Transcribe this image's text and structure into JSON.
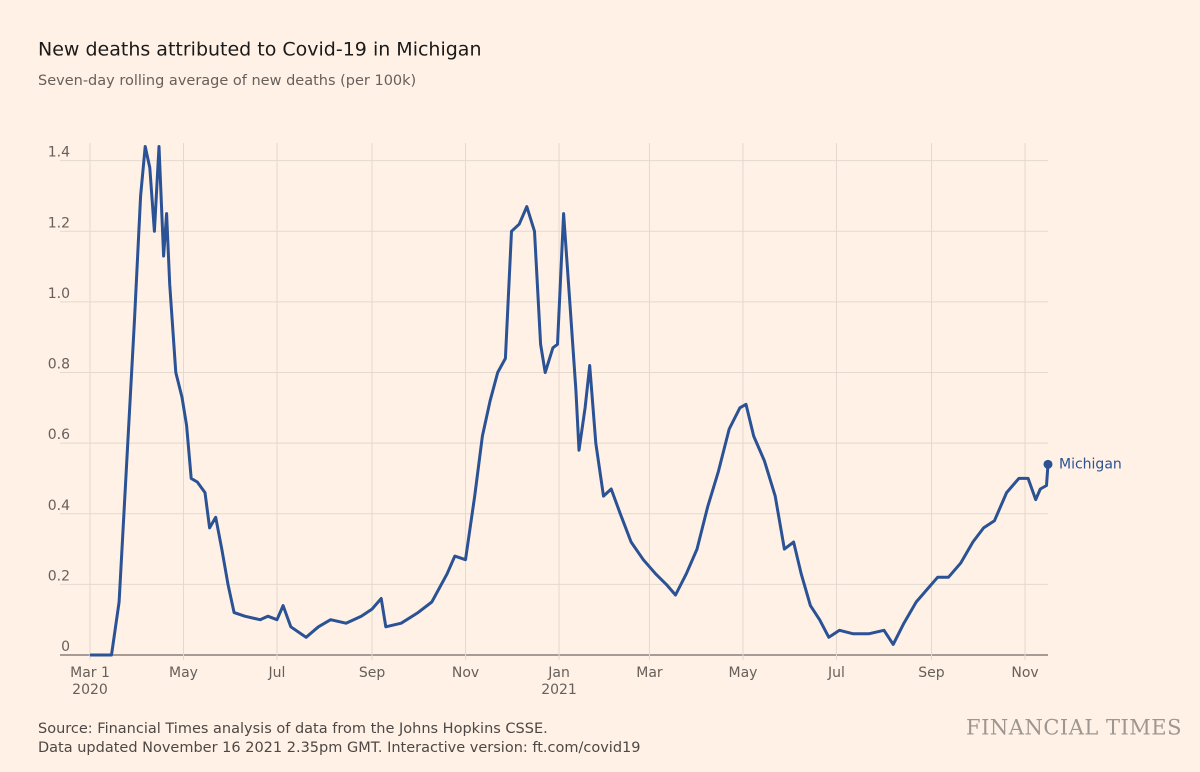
{
  "chart_data": {
    "type": "line",
    "title": "New deaths attributed to Covid-19 in Michigan",
    "subtitle": "Seven-day rolling average of new deaths (per 100k)",
    "source": "Source: Financial Times analysis of data from the Johns Hopkins CSSE.",
    "updated": "Data updated November 16 2021 2.35pm GMT. Interactive version: ft.com/covid19",
    "publisher": "FINANCIAL TIMES",
    "x": [
      "2020-03-01",
      "2020-03-15",
      "2020-03-20",
      "2020-03-25",
      "2020-03-30",
      "2020-04-03",
      "2020-04-06",
      "2020-04-09",
      "2020-04-12",
      "2020-04-15",
      "2020-04-18",
      "2020-04-20",
      "2020-04-22",
      "2020-04-26",
      "2020-04-30",
      "2020-05-03",
      "2020-05-06",
      "2020-05-10",
      "2020-05-15",
      "2020-05-18",
      "2020-05-22",
      "2020-05-26",
      "2020-05-30",
      "2020-06-03",
      "2020-06-10",
      "2020-06-20",
      "2020-06-25",
      "2020-07-01",
      "2020-07-05",
      "2020-07-10",
      "2020-07-20",
      "2020-07-28",
      "2020-08-05",
      "2020-08-15",
      "2020-08-25",
      "2020-09-01",
      "2020-09-07",
      "2020-09-10",
      "2020-09-20",
      "2020-10-01",
      "2020-10-10",
      "2020-10-20",
      "2020-10-25",
      "2020-11-01",
      "2020-11-07",
      "2020-11-12",
      "2020-11-17",
      "2020-11-22",
      "2020-11-27",
      "2020-12-01",
      "2020-12-06",
      "2020-12-11",
      "2020-12-16",
      "2020-12-20",
      "2020-12-23",
      "2020-12-28",
      "2020-12-31",
      "2021-01-04",
      "2021-01-08",
      "2021-01-12",
      "2021-01-14",
      "2021-01-18",
      "2021-01-21",
      "2021-01-25",
      "2021-01-30",
      "2021-02-04",
      "2021-02-10",
      "2021-02-17",
      "2021-02-25",
      "2021-03-05",
      "2021-03-12",
      "2021-03-18",
      "2021-03-25",
      "2021-04-01",
      "2021-04-08",
      "2021-04-15",
      "2021-04-22",
      "2021-04-29",
      "2021-05-03",
      "2021-05-08",
      "2021-05-15",
      "2021-05-22",
      "2021-05-28",
      "2021-06-03",
      "2021-06-08",
      "2021-06-14",
      "2021-06-20",
      "2021-06-26",
      "2021-07-03",
      "2021-07-12",
      "2021-07-22",
      "2021-08-01",
      "2021-08-07",
      "2021-08-14",
      "2021-08-22",
      "2021-08-30",
      "2021-09-05",
      "2021-09-12",
      "2021-09-20",
      "2021-09-28",
      "2021-10-05",
      "2021-10-12",
      "2021-10-20",
      "2021-10-28",
      "2021-11-03",
      "2021-11-08",
      "2021-11-11",
      "2021-11-15",
      "2021-11-16"
    ],
    "series": [
      {
        "name": "Michigan",
        "color": "#2a5294",
        "values": [
          0,
          0,
          0.15,
          0.55,
          0.95,
          1.3,
          1.44,
          1.38,
          1.2,
          1.44,
          1.13,
          1.25,
          1.05,
          0.8,
          0.73,
          0.65,
          0.5,
          0.49,
          0.46,
          0.36,
          0.39,
          0.3,
          0.2,
          0.12,
          0.11,
          0.1,
          0.11,
          0.1,
          0.14,
          0.08,
          0.05,
          0.08,
          0.1,
          0.09,
          0.11,
          0.13,
          0.16,
          0.08,
          0.09,
          0.12,
          0.15,
          0.23,
          0.28,
          0.27,
          0.45,
          0.62,
          0.72,
          0.8,
          0.84,
          1.2,
          1.22,
          1.27,
          1.2,
          0.88,
          0.8,
          0.87,
          0.88,
          1.25,
          1.0,
          0.75,
          0.58,
          0.7,
          0.82,
          0.6,
          0.45,
          0.47,
          0.4,
          0.32,
          0.27,
          0.23,
          0.2,
          0.17,
          0.23,
          0.3,
          0.42,
          0.52,
          0.64,
          0.7,
          0.71,
          0.62,
          0.55,
          0.45,
          0.3,
          0.32,
          0.23,
          0.14,
          0.1,
          0.05,
          0.07,
          0.06,
          0.06,
          0.07,
          0.03,
          0.09,
          0.15,
          0.19,
          0.22,
          0.22,
          0.26,
          0.32,
          0.36,
          0.38,
          0.46,
          0.5,
          0.5,
          0.44,
          0.47,
          0.48,
          0.54
        ]
      }
    ],
    "xlim": [
      "2020-03-01",
      "2021-11-16"
    ],
    "xticks": [
      {
        "value": "2020-03-01",
        "label": "Mar 1"
      },
      {
        "value": "2020-05-01",
        "label": "May"
      },
      {
        "value": "2020-07-01",
        "label": "Jul"
      },
      {
        "value": "2020-09-01",
        "label": "Sep"
      },
      {
        "value": "2020-11-01",
        "label": "Nov"
      },
      {
        "value": "2021-01-01",
        "label": "Jan"
      },
      {
        "value": "2021-03-01",
        "label": "Mar"
      },
      {
        "value": "2021-05-01",
        "label": "May"
      },
      {
        "value": "2021-07-01",
        "label": "Jul"
      },
      {
        "value": "2021-09-01",
        "label": "Sep"
      },
      {
        "value": "2021-11-01",
        "label": "Nov"
      }
    ],
    "year_labels": [
      {
        "value": "2020-03-01",
        "label": "2020"
      },
      {
        "value": "2021-01-01",
        "label": "2021"
      }
    ],
    "ylim": [
      0,
      1.45
    ],
    "yticks": [
      0,
      0.2,
      0.4,
      0.6,
      0.8,
      {
        "value": 1,
        "label": "1.0"
      },
      1.2,
      1.4
    ],
    "grid": true
  }
}
